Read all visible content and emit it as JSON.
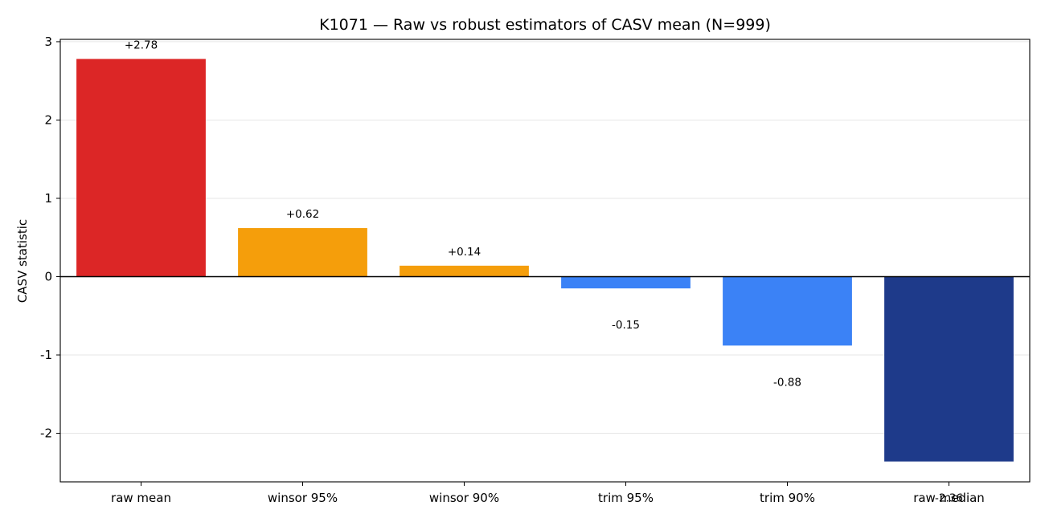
{
  "chart_data": {
    "type": "bar",
    "title": "K1071 — Raw vs robust estimators of CASV mean  (N=999)",
    "xlabel": "",
    "ylabel": "CASV statistic",
    "categories": [
      "raw mean",
      "winsor 95%",
      "winsor 90%",
      "trim 95%",
      "trim 90%",
      "raw median"
    ],
    "values": [
      2.78,
      0.62,
      0.14,
      -0.15,
      -0.88,
      -2.36
    ],
    "value_labels": [
      "+2.78",
      "+0.62",
      "+0.14",
      "-0.15",
      "-0.88",
      "-2.36"
    ],
    "colors": [
      "#dc2626",
      "#f59e0b",
      "#f59e0b",
      "#3b82f6",
      "#3b82f6",
      "#1e3a8a"
    ],
    "ylim": [
      -2.62,
      3.03
    ],
    "yticks": [
      3,
      2,
      1,
      0,
      -1,
      -2
    ],
    "ytick_labels": [
      "3",
      "2",
      "1",
      "0",
      "-1",
      "-2"
    ],
    "grid": true,
    "zero_line": true,
    "legend": "none"
  }
}
